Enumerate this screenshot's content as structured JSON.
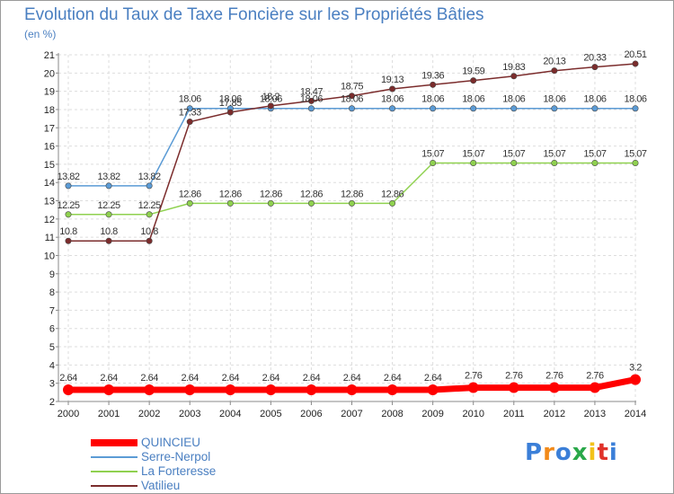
{
  "chart_data": {
    "type": "line",
    "title": "Evolution du Taux de Taxe Foncière sur les Propriétés Bâties",
    "subtitle": "(en %)",
    "xlabel": "",
    "ylabel": "",
    "ylim": [
      2,
      21
    ],
    "yticks": [
      "2",
      "3",
      "4",
      "5",
      "6",
      "7",
      "8",
      "9",
      "10",
      "11",
      "12",
      "13",
      "14",
      "15",
      "16",
      "17",
      "18",
      "19",
      "20",
      "21"
    ],
    "grid": true,
    "legend_position": "bottom-left",
    "categories": [
      "2000",
      "2001",
      "2002",
      "2003",
      "2004",
      "2005",
      "2006",
      "2007",
      "2008",
      "2009",
      "2010",
      "2011",
      "2012",
      "2013",
      "2014"
    ],
    "series": [
      {
        "name": "QUINCIEU",
        "color": "#ff0000",
        "values": [
          2.64,
          2.64,
          2.64,
          2.64,
          2.64,
          2.64,
          2.64,
          2.64,
          2.64,
          2.64,
          2.76,
          2.76,
          2.76,
          2.76,
          3.2
        ],
        "labels": [
          "2.64",
          "2.64",
          "2.64",
          "2.64",
          "2.64",
          "2.64",
          "2.64",
          "2.64",
          "2.64",
          "2.64",
          "2.76",
          "2.76",
          "2.76",
          "2.76",
          "3.2"
        ]
      },
      {
        "name": "Serre-Nerpol",
        "color": "#5b9bd5",
        "values": [
          13.82,
          13.82,
          13.82,
          18.06,
          18.06,
          18.06,
          18.06,
          18.06,
          18.06,
          18.06,
          18.06,
          18.06,
          18.06,
          18.06,
          18.06
        ],
        "labels": [
          "13.82",
          "13.82",
          "13.82",
          "18.06",
          "18.06",
          "18.06",
          "18.06",
          "18.06",
          "18.06",
          "18.06",
          "18.06",
          "18.06",
          "18.06",
          "18.06",
          "18.06"
        ]
      },
      {
        "name": "La Forteresse",
        "color": "#8fd14f",
        "values": [
          12.25,
          12.25,
          12.25,
          12.86,
          12.86,
          12.86,
          12.86,
          12.86,
          12.86,
          15.07,
          15.07,
          15.07,
          15.07,
          15.07,
          15.07
        ],
        "labels": [
          "12.25",
          "12.25",
          "12.25",
          "12.86",
          "12.86",
          "12.86",
          "12.86",
          "12.86",
          "12.86",
          "15.07",
          "15.07",
          "15.07",
          "15.07",
          "15.07",
          "15.07"
        ]
      },
      {
        "name": "Vatilieu",
        "color": "#7b2c2c",
        "values": [
          10.8,
          10.8,
          10.8,
          17.33,
          17.85,
          18.2,
          18.47,
          18.75,
          19.13,
          19.36,
          19.59,
          19.83,
          20.13,
          20.33,
          20.51
        ],
        "labels": [
          "10.8",
          "10.8",
          "10.8",
          "17.33",
          "17.85",
          "18.2",
          "18.47",
          "18.75",
          "19.13",
          "19.36",
          "19.59",
          "19.83",
          "20.13",
          "20.33",
          "20.51"
        ]
      }
    ]
  },
  "logo": {
    "letters": [
      "P",
      "r",
      "o",
      "x",
      "i",
      "t",
      "i"
    ],
    "colors": [
      "#3b7fd8",
      "#f28a1a",
      "#3b7fd8",
      "#2aa84a",
      "#f2c21a",
      "#e0322a",
      "#3b7fd8"
    ]
  }
}
